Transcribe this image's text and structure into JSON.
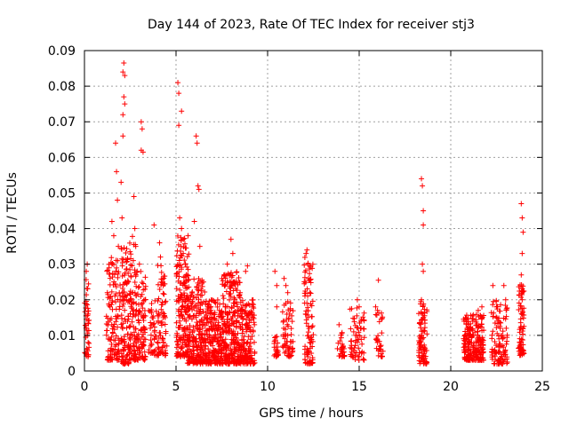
{
  "chart_data": {
    "type": "scatter",
    "title": "Day 144 of 2023, Rate Of TEC Index for receiver stj3",
    "xlabel": "GPS time / hours",
    "ylabel": "ROTI / TECUs",
    "xlim": [
      0,
      25
    ],
    "ylim": [
      0,
      0.09
    ],
    "xticks": [
      "0",
      "5",
      "10",
      "15",
      "20",
      "25"
    ],
    "yticks": [
      "0",
      "0.01",
      "0.02",
      "0.03",
      "0.04",
      "0.05",
      "0.06",
      "0.07",
      "0.08",
      "0.09"
    ],
    "grid": true,
    "marker": "+",
    "series": [
      {
        "color": "#ff0000",
        "points": [
          [
            0.05,
            0.005
          ],
          [
            0.1,
            0.012
          ],
          [
            0.1,
            0.028
          ],
          [
            0.15,
            0.03
          ],
          [
            0.2,
            0.008
          ],
          [
            0.2,
            0.016
          ],
          [
            1.3,
            0.009
          ],
          [
            1.4,
            0.018
          ],
          [
            1.5,
            0.03
          ],
          [
            1.5,
            0.042
          ],
          [
            1.6,
            0.038
          ],
          [
            1.7,
            0.064
          ],
          [
            1.75,
            0.056
          ],
          [
            1.8,
            0.048
          ],
          [
            1.85,
            0.035
          ],
          [
            2.0,
            0.053
          ],
          [
            2.05,
            0.043
          ],
          [
            2.1,
            0.066
          ],
          [
            2.15,
            0.077
          ],
          [
            2.2,
            0.075
          ],
          [
            2.1,
            0.084
          ],
          [
            2.15,
            0.0865
          ],
          [
            2.2,
            0.083
          ],
          [
            2.1,
            0.072
          ],
          [
            2.5,
            0.02
          ],
          [
            2.7,
            0.049
          ],
          [
            2.75,
            0.04
          ],
          [
            2.8,
            0.035
          ],
          [
            3.1,
            0.07
          ],
          [
            3.15,
            0.068
          ],
          [
            3.1,
            0.062
          ],
          [
            3.2,
            0.0615
          ],
          [
            3.0,
            0.03
          ],
          [
            3.3,
            0.02
          ],
          [
            3.6,
            0.007
          ],
          [
            3.7,
            0.015
          ],
          [
            3.8,
            0.041
          ],
          [
            4.1,
            0.036
          ],
          [
            4.15,
            0.032
          ],
          [
            4.2,
            0.025
          ],
          [
            4.3,
            0.015
          ],
          [
            4.5,
            0.007
          ],
          [
            5.1,
            0.081
          ],
          [
            5.15,
            0.078
          ],
          [
            5.3,
            0.073
          ],
          [
            5.15,
            0.069
          ],
          [
            5.2,
            0.043
          ],
          [
            5.3,
            0.04
          ],
          [
            5.4,
            0.037
          ],
          [
            5.5,
            0.03
          ],
          [
            6.1,
            0.066
          ],
          [
            6.15,
            0.064
          ],
          [
            6.2,
            0.052
          ],
          [
            6.25,
            0.051
          ],
          [
            6.0,
            0.042
          ],
          [
            6.3,
            0.035
          ],
          [
            6.5,
            0.025
          ],
          [
            6.8,
            0.018
          ],
          [
            7.5,
            0.015
          ],
          [
            7.8,
            0.03
          ],
          [
            8.0,
            0.037
          ],
          [
            8.1,
            0.033
          ],
          [
            8.2,
            0.025
          ],
          [
            8.5,
            0.022
          ],
          [
            8.8,
            0.028
          ],
          [
            8.9,
            0.0295
          ],
          [
            9.2,
            0.018
          ],
          [
            10.4,
            0.028
          ],
          [
            10.5,
            0.024
          ],
          [
            10.5,
            0.018
          ],
          [
            10.45,
            0.006
          ],
          [
            10.9,
            0.026
          ],
          [
            11.0,
            0.024
          ],
          [
            11.1,
            0.022
          ],
          [
            11.2,
            0.016
          ],
          [
            11.1,
            0.01
          ],
          [
            12.1,
            0.033
          ],
          [
            12.15,
            0.034
          ],
          [
            12.2,
            0.03
          ],
          [
            12.3,
            0.022
          ],
          [
            12.2,
            0.015
          ],
          [
            12.3,
            0.008
          ],
          [
            12.2,
            0.004
          ],
          [
            13.9,
            0.013
          ],
          [
            14.0,
            0.01
          ],
          [
            14.0,
            0.006
          ],
          [
            14.7,
            0.011
          ],
          [
            14.8,
            0.01
          ],
          [
            14.9,
            0.02
          ],
          [
            15.0,
            0.018
          ],
          [
            15.1,
            0.012
          ],
          [
            15.0,
            0.004
          ],
          [
            15.9,
            0.018
          ],
          [
            16.0,
            0.017
          ],
          [
            16.05,
            0.0255
          ],
          [
            16.0,
            0.008
          ],
          [
            16.1,
            0.006
          ],
          [
            18.4,
            0.054
          ],
          [
            18.45,
            0.052
          ],
          [
            18.5,
            0.045
          ],
          [
            18.5,
            0.041
          ],
          [
            18.45,
            0.03
          ],
          [
            18.5,
            0.028
          ],
          [
            18.4,
            0.02
          ],
          [
            18.5,
            0.015
          ],
          [
            18.45,
            0.009
          ],
          [
            18.5,
            0.004
          ],
          [
            20.8,
            0.015
          ],
          [
            20.9,
            0.012
          ],
          [
            21.2,
            0.014
          ],
          [
            21.5,
            0.017
          ],
          [
            21.7,
            0.018
          ],
          [
            21.1,
            0.005
          ],
          [
            21.4,
            0.008
          ],
          [
            21.7,
            0.006
          ],
          [
            22.3,
            0.024
          ],
          [
            22.5,
            0.018
          ],
          [
            22.7,
            0.012
          ],
          [
            22.9,
            0.024
          ],
          [
            23.0,
            0.02
          ],
          [
            22.8,
            0.004
          ],
          [
            23.85,
            0.047
          ],
          [
            23.9,
            0.043
          ],
          [
            23.95,
            0.039
          ],
          [
            23.9,
            0.033
          ],
          [
            23.85,
            0.027
          ],
          [
            23.9,
            0.02
          ],
          [
            23.95,
            0.012
          ],
          [
            23.9,
            0.006
          ]
        ]
      }
    ],
    "clusters": [
      {
        "x": [
          0.0,
          0.25
        ],
        "y": [
          0.004,
          0.026
        ],
        "n": 40
      },
      {
        "x": [
          1.2,
          1.95
        ],
        "y": [
          0.003,
          0.032
        ],
        "n": 120
      },
      {
        "x": [
          2.0,
          2.45
        ],
        "y": [
          0.002,
          0.035
        ],
        "n": 110
      },
      {
        "x": [
          2.45,
          2.9
        ],
        "y": [
          0.003,
          0.038
        ],
        "n": 100
      },
      {
        "x": [
          2.9,
          3.35
        ],
        "y": [
          0.003,
          0.028
        ],
        "n": 80
      },
      {
        "x": [
          3.5,
          4.0
        ],
        "y": [
          0.004,
          0.02
        ],
        "n": 40
      },
      {
        "x": [
          4.0,
          4.45
        ],
        "y": [
          0.004,
          0.03
        ],
        "n": 70
      },
      {
        "x": [
          5.0,
          5.7
        ],
        "y": [
          0.004,
          0.038
        ],
        "n": 180
      },
      {
        "x": [
          5.6,
          6.6
        ],
        "y": [
          0.002,
          0.026
        ],
        "n": 230
      },
      {
        "x": [
          6.6,
          7.5
        ],
        "y": [
          0.002,
          0.02
        ],
        "n": 200
      },
      {
        "x": [
          7.5,
          8.5
        ],
        "y": [
          0.002,
          0.028
        ],
        "n": 260
      },
      {
        "x": [
          8.5,
          9.3
        ],
        "y": [
          0.002,
          0.02
        ],
        "n": 160
      },
      {
        "x": [
          10.35,
          10.6
        ],
        "y": [
          0.004,
          0.01
        ],
        "n": 25
      },
      {
        "x": [
          10.8,
          11.4
        ],
        "y": [
          0.004,
          0.02
        ],
        "n": 60
      },
      {
        "x": [
          12.0,
          12.5
        ],
        "y": [
          0.002,
          0.032
        ],
        "n": 90
      },
      {
        "x": [
          13.8,
          14.2
        ],
        "y": [
          0.004,
          0.012
        ],
        "n": 25
      },
      {
        "x": [
          14.5,
          15.3
        ],
        "y": [
          0.003,
          0.018
        ],
        "n": 60
      },
      {
        "x": [
          15.9,
          16.3
        ],
        "y": [
          0.004,
          0.017
        ],
        "n": 30
      },
      {
        "x": [
          18.25,
          18.7
        ],
        "y": [
          0.002,
          0.02
        ],
        "n": 80
      },
      {
        "x": [
          20.7,
          21.8
        ],
        "y": [
          0.003,
          0.016
        ],
        "n": 220
      },
      {
        "x": [
          22.2,
          23.1
        ],
        "y": [
          0.002,
          0.02
        ],
        "n": 110
      },
      {
        "x": [
          23.7,
          24.0
        ],
        "y": [
          0.004,
          0.025
        ],
        "n": 70
      }
    ]
  }
}
